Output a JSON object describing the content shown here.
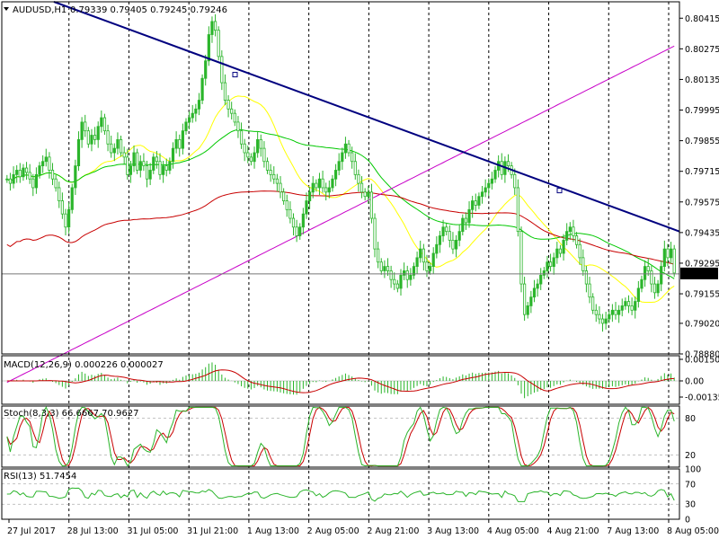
{
  "chart_data": {
    "type": "candlestick",
    "title": "AUDUSD,H1",
    "ohlc_header": "0.79339 0.79405 0.79245 0.79246",
    "current_price": "0.79246",
    "price_axis": {
      "ylim": [
        0.7888,
        0.8049
      ],
      "ticks": [
        "0.80415",
        "0.80275",
        "0.80135",
        "0.79995",
        "0.79855",
        "0.79715",
        "0.79575",
        "0.79435",
        "0.79295",
        "0.79155",
        "0.79020",
        "0.78880"
      ]
    },
    "time_axis": {
      "labels": [
        "27 Jul 2017",
        "28 Jul 13:00",
        "31 Jul 05:00",
        "31 Jul 21:00",
        "1 Aug 13:00",
        "2 Aug 05:00",
        "2 Aug 21:00",
        "3 Aug 13:00",
        "4 Aug 05:00",
        "4 Aug 21:00",
        "7 Aug 13:00",
        "8 Aug 05:00"
      ]
    },
    "grid": true,
    "close_series": [
      0.7968,
      0.7966,
      0.797,
      0.7972,
      0.7969,
      0.7973,
      0.7971,
      0.7968,
      0.7964,
      0.797,
      0.7974,
      0.7976,
      0.7978,
      0.7972,
      0.7968,
      0.7964,
      0.7958,
      0.7952,
      0.7946,
      0.7954,
      0.7964,
      0.7974,
      0.7986,
      0.7994,
      0.799,
      0.7984,
      0.7988,
      0.7986,
      0.7992,
      0.7996,
      0.799,
      0.7984,
      0.798,
      0.7982,
      0.7986,
      0.798,
      0.7978,
      0.797,
      0.7974,
      0.798,
      0.7972,
      0.7976,
      0.7974,
      0.7968,
      0.7972,
      0.7978,
      0.7976,
      0.797,
      0.7974,
      0.7972,
      0.7976,
      0.7982,
      0.7986,
      0.7982,
      0.799,
      0.7994,
      0.7996,
      0.7998,
      0.8,
      0.8004,
      0.8014,
      0.8022,
      0.8034,
      0.804,
      0.8036,
      0.8024,
      0.8012,
      0.8004,
      0.8,
      0.7998,
      0.7994,
      0.799,
      0.7984,
      0.798,
      0.7978,
      0.7976,
      0.798,
      0.7986,
      0.7982,
      0.7976,
      0.7972,
      0.797,
      0.7968,
      0.7966,
      0.7962,
      0.7958,
      0.7954,
      0.795,
      0.7946,
      0.7942,
      0.7946,
      0.7952,
      0.7958,
      0.7962,
      0.7966,
      0.7964,
      0.7968,
      0.7964,
      0.7962,
      0.7964,
      0.7968,
      0.7972,
      0.7976,
      0.798,
      0.7984,
      0.798,
      0.7976,
      0.797,
      0.7966,
      0.7962,
      0.796,
      0.7962,
      0.795,
      0.7936,
      0.793,
      0.7926,
      0.7928,
      0.7926,
      0.7922,
      0.792,
      0.7918,
      0.7924,
      0.7926,
      0.7922,
      0.7924,
      0.7928,
      0.7932,
      0.7936,
      0.793,
      0.7926,
      0.7928,
      0.7934,
      0.7938,
      0.7942,
      0.7946,
      0.7944,
      0.794,
      0.7936,
      0.794,
      0.7944,
      0.795,
      0.7948,
      0.7954,
      0.7958,
      0.7956,
      0.796,
      0.7962,
      0.7964,
      0.7966,
      0.7968,
      0.7972,
      0.7976,
      0.797,
      0.7976,
      0.7974,
      0.797,
      0.7964,
      0.7944,
      0.792,
      0.7906,
      0.791,
      0.7914,
      0.7918,
      0.792,
      0.7924,
      0.7926,
      0.793,
      0.7928,
      0.7932,
      0.7936,
      0.7934,
      0.794,
      0.7944,
      0.7946,
      0.7942,
      0.7938,
      0.7932,
      0.7926,
      0.792,
      0.7914,
      0.7908,
      0.7906,
      0.7904,
      0.7902,
      0.7904,
      0.7906,
      0.7908,
      0.7906,
      0.7908,
      0.791,
      0.7912,
      0.791,
      0.7908,
      0.7912,
      0.7918,
      0.7922,
      0.7928,
      0.7926,
      0.792,
      0.7916,
      0.792,
      0.7928,
      0.7936,
      0.7932,
      0.7936,
      0.7925
    ],
    "indicators": {
      "macd_label": "MACD(12,26,9) 0.000226 0.000027",
      "macd_ticks": [
        "0.001504",
        "0.00",
        "-0.001351"
      ],
      "stoch_label": "Stoch(8,3,3) 66.6667 70.9627",
      "stoch_ticks": [
        "80",
        "20"
      ],
      "rsi_label": "RSI(13) 51.7454",
      "rsi_ticks": [
        "100",
        "70",
        "30",
        "0"
      ]
    },
    "colors": {
      "bull": "#2bb52b",
      "bear": "#2bb52b",
      "trendline": "#00007f",
      "ma_yellow": "#ffff00",
      "ma_green": "#00c800",
      "ma_red": "#c80000",
      "ma_magenta": "#c800c8",
      "grid": "#000000",
      "macd_hist": "#2bb52b",
      "macd_signal": "#c80000",
      "stoch_main": "#2bb52b",
      "stoch_signal": "#c80000",
      "rsi": "#2bb52b"
    }
  }
}
